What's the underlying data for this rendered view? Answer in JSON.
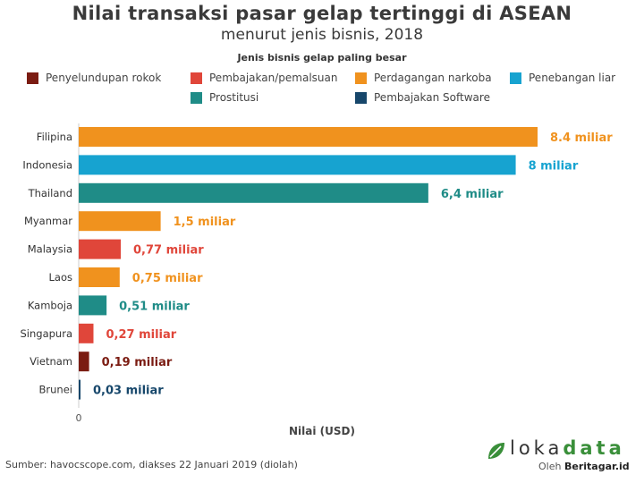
{
  "title": "Nilai transaksi pasar gelap tertinggi di ASEAN",
  "subtitle": "menurut jenis bisnis, 2018",
  "legend_title": "Jenis bisnis gelap paling besar",
  "legend": [
    {
      "label": "Penyelundupan rokok",
      "color": "#7b1c12"
    },
    {
      "label": "Pembajakan/pemalsuan",
      "color": "#e0463a"
    },
    {
      "label": "Perdagangan narkoba",
      "color": "#f0921e"
    },
    {
      "label": "Penebangan liar",
      "color": "#17a3d0"
    },
    {
      "label": "Prostitusi",
      "color": "#1f8c87"
    },
    {
      "label": "Pembajakan Software",
      "color": "#17476b"
    }
  ],
  "chart_data": {
    "type": "bar",
    "orientation": "horizontal",
    "xlabel": "Nilai (USD)",
    "x_tick_labels": [
      "0"
    ],
    "xlim": [
      0,
      8.4
    ],
    "categories": [
      "Filipina",
      "Indonesia",
      "Thailand",
      "Myanmar",
      "Malaysia",
      "Laos",
      "Kamboja",
      "Singapura",
      "Vietnam",
      "Brunei"
    ],
    "values": [
      8.4,
      8,
      6.4,
      1.5,
      0.77,
      0.75,
      0.51,
      0.27,
      0.19,
      0.03
    ],
    "value_labels": [
      "8.4 miliar",
      "8 miliar",
      "6,4 miliar",
      "1,5 miliar",
      "0,77 miliar",
      "0,75 miliar",
      "0,51 miliar",
      "0,27 miliar",
      "0,19 miliar",
      "0,03 miliar"
    ],
    "bar_types": [
      "Perdagangan narkoba",
      "Penebangan liar",
      "Prostitusi",
      "Perdagangan narkoba",
      "Pembajakan/pemalsuan",
      "Perdagangan narkoba",
      "Prostitusi",
      "Pembajakan/pemalsuan",
      "Penyelundupan rokok",
      "Pembajakan Software"
    ],
    "bar_colors": [
      "#f0921e",
      "#17a3d0",
      "#1f8c87",
      "#f0921e",
      "#e0463a",
      "#f0921e",
      "#1f8c87",
      "#e0463a",
      "#7b1c12",
      "#17476b"
    ]
  },
  "source": "Sumber: havocscope.com, diakses 22 Januari 2019 (diolah)",
  "logo": {
    "icon": "lokadata-leaf-icon",
    "text_plain": "loka",
    "text_accent": "data",
    "sub_prefix": "Oleh",
    "sub_brand": "Beritagar.id"
  }
}
